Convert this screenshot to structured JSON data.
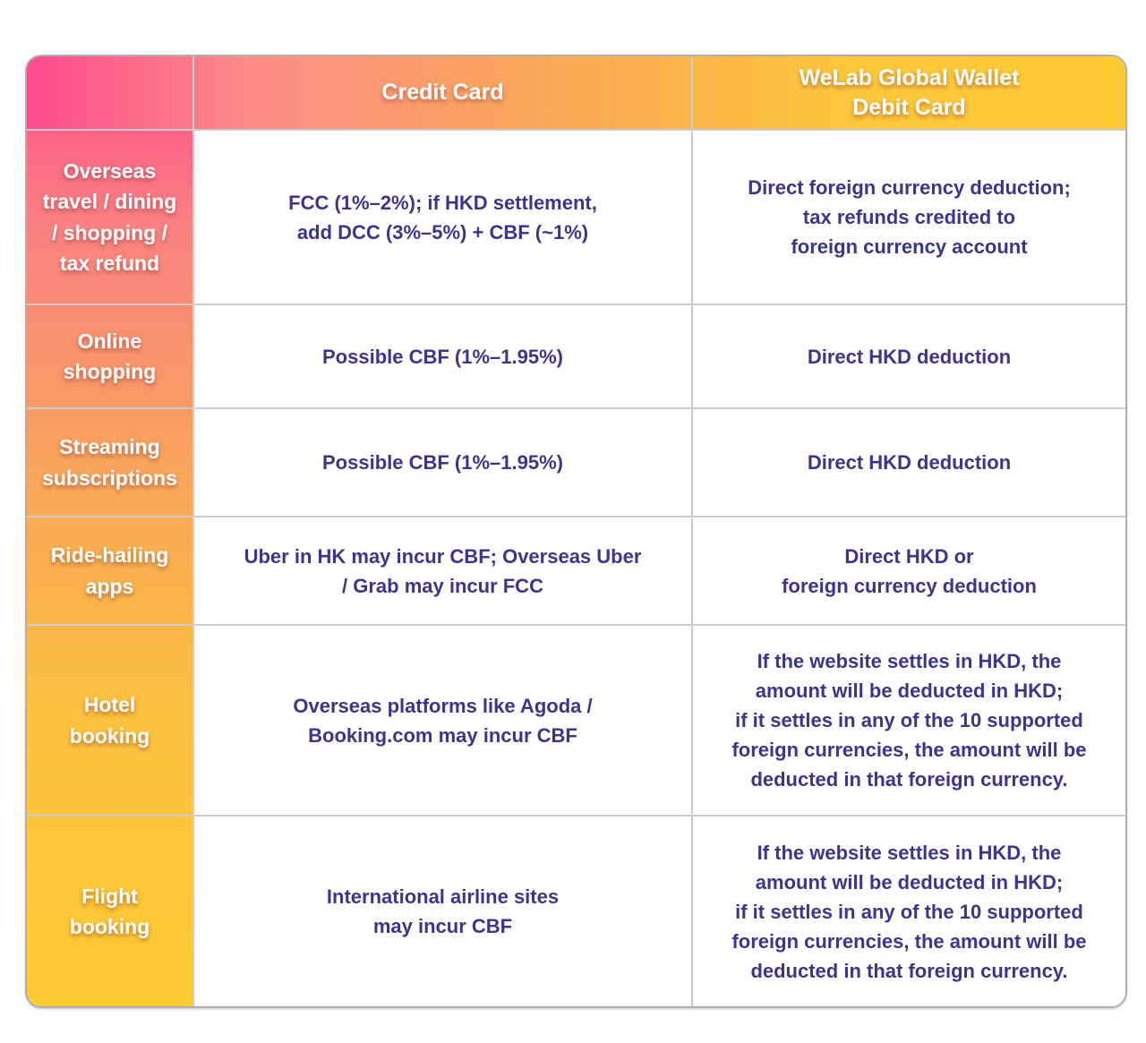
{
  "table": {
    "header": {
      "corner": "",
      "credit_card": "Credit Card",
      "debit_card_lines": [
        "WeLab Global Wallet",
        "Debit Card"
      ]
    },
    "rows": [
      {
        "label_lines": [
          "Overseas",
          "travel / dining",
          "/ shopping /",
          "tax refund"
        ],
        "credit_lines": [
          "FCC (1%–2%); if HKD settlement,",
          "add DCC (3%–5%) + CBF (~1%)"
        ],
        "debit_lines": [
          "Direct foreign currency deduction;",
          "tax refunds credited to",
          "foreign currency account"
        ]
      },
      {
        "label_lines": [
          "Online",
          "shopping"
        ],
        "credit_lines": [
          "Possible CBF (1%–1.95%)"
        ],
        "debit_lines": [
          "Direct HKD deduction"
        ]
      },
      {
        "label_lines": [
          "Streaming",
          "subscriptions"
        ],
        "credit_lines": [
          "Possible CBF (1%–1.95%)"
        ],
        "debit_lines": [
          "Direct HKD deduction"
        ]
      },
      {
        "label_lines": [
          "Ride-hailing",
          "apps"
        ],
        "credit_lines": [
          "Uber in HK may incur CBF; Overseas Uber",
          "/ Grab may incur FCC"
        ],
        "debit_lines": [
          "Direct HKD or",
          "foreign currency deduction"
        ]
      },
      {
        "label_lines": [
          "Hotel",
          "booking"
        ],
        "credit_lines": [
          "Overseas platforms like Agoda /",
          "Booking.com may incur CBF"
        ],
        "debit_lines": [
          "If the website settles in HKD, the",
          "amount will be deducted in HKD;",
          "if it settles in any of the 10 supported",
          "foreign currencies, the amount will be",
          "deducted in that foreign currency."
        ]
      },
      {
        "label_lines": [
          "Flight",
          "booking"
        ],
        "credit_lines": [
          "International airline sites",
          "may incur CBF"
        ],
        "debit_lines": [
          "If the website settles in HKD, the",
          "amount will be deducted in HKD;",
          "if it settles in any of the 10 supported",
          "foreign currencies, the amount will be",
          "deducted in that foreign currency."
        ]
      }
    ],
    "colors": {
      "gradient_pink": "#FC4B8D",
      "gradient_yellow": "#FCCB33",
      "cell_text_indigo": "#3D3589",
      "grid_line_gray": "#CCCCCC",
      "header_text": "#FFFFFF"
    }
  }
}
